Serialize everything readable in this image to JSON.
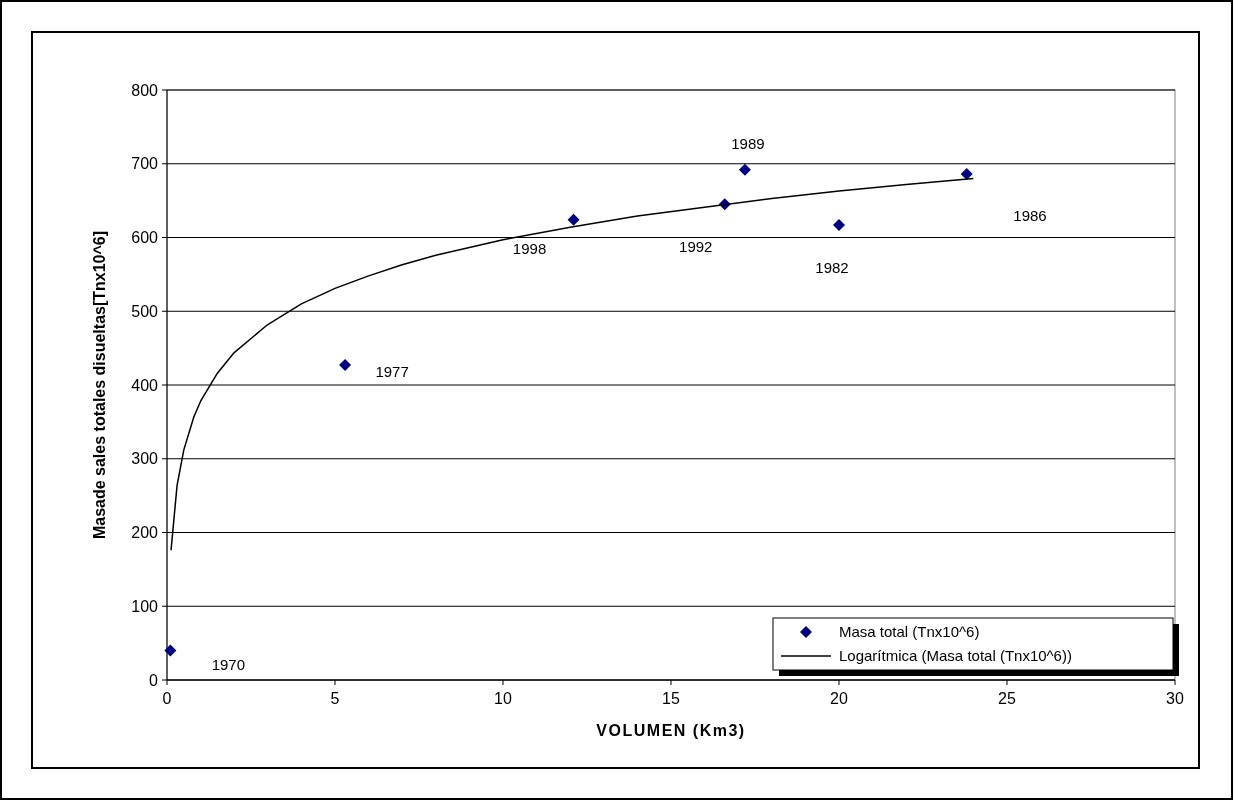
{
  "chart_data": {
    "type": "scatter",
    "xlabel": "VOLUMEN (Km3)",
    "ylabel": "Masade sales totales disueltas[Tnx10^6]",
    "series": [
      {
        "name": "Masa total (Tnx10^6)",
        "color": "#000080",
        "marker": "diamond",
        "x": [
          0.1,
          5.3,
          12.1,
          16.6,
          17.2,
          20.0,
          23.8
        ],
        "values": [
          40,
          427,
          624,
          645,
          692,
          617,
          686
        ]
      },
      {
        "name": "Logarítmica (Masa total (Tnx10^6))",
        "type": "line",
        "color": "#000000",
        "marker": "none",
        "line_style": "solid",
        "x": [
          0.12,
          0.3,
          0.5,
          0.8,
          1,
          1.5,
          2,
          3,
          4,
          5,
          6,
          7,
          8,
          10,
          12,
          14,
          16,
          18,
          20,
          22,
          24
        ],
        "values": [
          176,
          264,
          312,
          357,
          378,
          416,
          444,
          482,
          510,
          531,
          548,
          563,
          576,
          597,
          614,
          629,
          641,
          653,
          663,
          672,
          680
        ]
      }
    ],
    "xlim": [
      0,
      30
    ],
    "xticks": [
      0,
      5,
      10,
      15,
      20,
      25,
      30
    ],
    "ylim": [
      0,
      800
    ],
    "yticks": [
      0,
      100,
      200,
      300,
      400,
      500,
      600,
      700,
      800
    ],
    "grid": "y",
    "legend": "bottom right",
    "annotations": [
      {
        "text": "1970",
        "x": 0.1,
        "y": 40
      },
      {
        "text": "1977",
        "x": 5.3,
        "y": 427
      },
      {
        "text": "1998",
        "x": 12.1,
        "y": 624
      },
      {
        "text": "1992",
        "x": 16.6,
        "y": 645
      },
      {
        "text": "1989",
        "x": 17.2,
        "y": 692
      },
      {
        "text": "1982",
        "x": 20.0,
        "y": 617
      },
      "1986"
    ]
  }
}
